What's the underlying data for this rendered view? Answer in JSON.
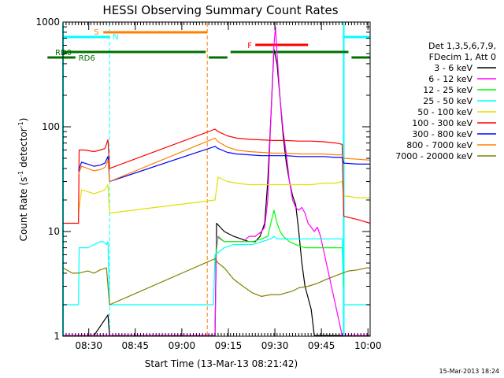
{
  "chart_data": {
    "type": "line",
    "title": "HESSI Observing Summary Count Rates",
    "xlabel": "Start Time (13-Mar-13 08:21:42)",
    "ylabel_pre": "Count Rate (s",
    "ylabel_exp": "-1",
    "ylabel_mid": " detector",
    "ylabel_post": ")",
    "footer_date": "15-Mar-2013 18:24",
    "x_range_min": [
      0,
      99
    ],
    "y_range": [
      1,
      1000
    ],
    "y_scale": "log",
    "y_ticks": [
      1,
      10,
      100,
      1000
    ],
    "y_tick_labels": [
      "1",
      "10",
      "100",
      "1000"
    ],
    "x_ticks_min": [
      8.3,
      23.3,
      38.3,
      53.3,
      68.3,
      83.3,
      98.3
    ],
    "x_tick_labels": [
      "08:30",
      "08:45",
      "09:00",
      "09:15",
      "09:30",
      "09:45",
      "10:00"
    ],
    "legend_header": [
      "Det 1,3,5,6,7,9,",
      "FDecim 1, Att 0"
    ],
    "series": [
      {
        "name": "3 - 6 keV",
        "color": "#000000",
        "x": [
          -1,
          5,
          5,
          10,
          14.5,
          15,
          49,
          49.5,
          52,
          55,
          60,
          62,
          63.5,
          65,
          66,
          67,
          68,
          69,
          70,
          71,
          72,
          73,
          74,
          75,
          76,
          77,
          78,
          80,
          81,
          90,
          90.5,
          101
        ],
        "y": [
          0,
          0,
          0,
          0,
          1.6,
          0,
          0,
          12,
          10,
          9,
          8,
          8,
          9,
          12,
          30,
          120,
          550,
          400,
          180,
          80,
          45,
          30,
          22,
          18,
          10,
          5,
          3,
          1.8,
          0,
          0,
          0,
          0
        ]
      },
      {
        "name": "6 - 12 keV",
        "color": "#ff00ff",
        "x": [
          -1,
          49,
          49.5,
          52,
          55,
          58,
          60,
          62,
          64,
          65,
          66,
          67,
          68,
          68.5,
          69,
          70,
          71,
          72,
          73,
          74,
          75,
          76,
          77,
          78,
          79,
          80,
          81,
          82,
          83,
          90,
          90.5,
          101
        ],
        "y": [
          0,
          0,
          9,
          8,
          8,
          8,
          9,
          9,
          10,
          11,
          20,
          120,
          600,
          900,
          500,
          180,
          90,
          55,
          30,
          20,
          17,
          16,
          17,
          15,
          12,
          11,
          10,
          11,
          9,
          0,
          0,
          0
        ]
      },
      {
        "name": "12 - 25 keV",
        "color": "#00ff00",
        "x": [
          49,
          50,
          52,
          55,
          58,
          61,
          64,
          66,
          67,
          68,
          69,
          70,
          71,
          73,
          75,
          78,
          81,
          84,
          86,
          90,
          90.5
        ],
        "y": [
          5,
          9,
          8,
          8,
          8,
          8,
          8.5,
          9,
          12,
          16,
          12,
          10,
          9,
          8,
          7.5,
          7,
          7,
          7,
          7,
          7,
          3
        ]
      },
      {
        "name": "25 - 50 keV",
        "color": "#00ffff",
        "x": [
          -1,
          0,
          3,
          5,
          5.2,
          8,
          10,
          12,
          13,
          14,
          14.5,
          15,
          48.5,
          49,
          52,
          55,
          58,
          61,
          64,
          67,
          68,
          69,
          70,
          73,
          76,
          79,
          82,
          85,
          88,
          90,
          90.5,
          101
        ],
        "y": [
          2,
          2,
          2,
          2,
          7,
          7,
          7.5,
          8,
          8,
          7.5,
          8,
          2,
          2,
          6,
          7,
          7.5,
          7.5,
          7.5,
          8,
          8.5,
          9,
          8.5,
          8.5,
          8.5,
          8.5,
          8.5,
          8.5,
          8.5,
          8.5,
          8.5,
          2,
          2
        ]
      },
      {
        "name": "50 - 100 keV",
        "color": "#e0e000",
        "x": [
          5,
          6,
          8,
          10,
          12,
          13.5,
          14.5,
          15,
          49,
          50,
          53,
          56,
          60,
          64,
          68,
          72,
          76,
          80,
          84,
          88,
          90,
          90.5,
          95,
          100
        ],
        "y": [
          15,
          25,
          24,
          23,
          24,
          25,
          28,
          15,
          20,
          33,
          30,
          29,
          28,
          28,
          28,
          28,
          28,
          28,
          29,
          29,
          30,
          22,
          21,
          21
        ]
      },
      {
        "name": "100 - 300 keV",
        "color": "#ff0000",
        "x": [
          -1,
          0,
          3,
          5,
          5.2,
          7,
          10,
          12,
          13.5,
          14.5,
          15,
          49,
          50,
          53,
          56,
          60,
          64,
          68,
          72,
          76,
          80,
          84,
          88,
          90,
          90.5,
          95,
          100
        ],
        "y": [
          12,
          12,
          12,
          12,
          60,
          60,
          58,
          60,
          62,
          75,
          40,
          95,
          90,
          82,
          78,
          76,
          75,
          74,
          74,
          73,
          73,
          72,
          70,
          68,
          14,
          13,
          12
        ]
      },
      {
        "name": "300 - 800 keV",
        "color": "#0000ff",
        "x": [
          5,
          6,
          8,
          10,
          12,
          13.5,
          14.5,
          15,
          49,
          50,
          53,
          56,
          60,
          64,
          68,
          72,
          76,
          80,
          84,
          88,
          90,
          90.5,
          95,
          100
        ],
        "y": [
          38,
          46,
          44,
          42,
          43,
          45,
          52,
          30,
          65,
          62,
          57,
          55,
          54,
          53,
          53,
          53,
          52,
          52,
          52,
          51,
          51,
          45,
          44,
          44
        ]
      },
      {
        "name": "800 - 7000 keV",
        "color": "#ff8000",
        "x": [
          5,
          6,
          8,
          10,
          12,
          13.5,
          14.5,
          15,
          49,
          50,
          53,
          56,
          60,
          64,
          68,
          72,
          76,
          80,
          84,
          88,
          90,
          90.5,
          95,
          100
        ],
        "y": [
          35,
          42,
          40,
          38,
          39,
          41,
          48,
          30,
          78,
          72,
          64,
          60,
          58,
          57,
          56,
          56,
          55,
          55,
          55,
          54,
          54,
          50,
          49,
          48
        ]
      },
      {
        "name": "7000 - 20000 keV",
        "color": "#808000",
        "x": [
          -1,
          0,
          3,
          5,
          8,
          10,
          12,
          14,
          15,
          49,
          50,
          52,
          55,
          58,
          61,
          64,
          67,
          70,
          72,
          74,
          76,
          79,
          82,
          85,
          88,
          90,
          92,
          95,
          98,
          100
        ],
        "y": [
          4.5,
          4.5,
          4,
          4,
          4.2,
          4,
          4.3,
          4.5,
          2,
          5.5,
          5,
          4.5,
          3.5,
          3,
          2.6,
          2.4,
          2.5,
          2.5,
          2.6,
          2.7,
          2.9,
          3,
          3.2,
          3.5,
          3.8,
          4,
          4.2,
          4.3,
          4.5,
          4.5
        ]
      }
    ],
    "annotations": {
      "flag_labels": [
        "S",
        "N",
        "F",
        "RD0",
        "RD6"
      ],
      "flag_colors": {
        "S": "#ff8000",
        "N": "#00ffff",
        "F": "#ff0000",
        "RD0": "#007000",
        "RD6": "#007000"
      }
    }
  }
}
